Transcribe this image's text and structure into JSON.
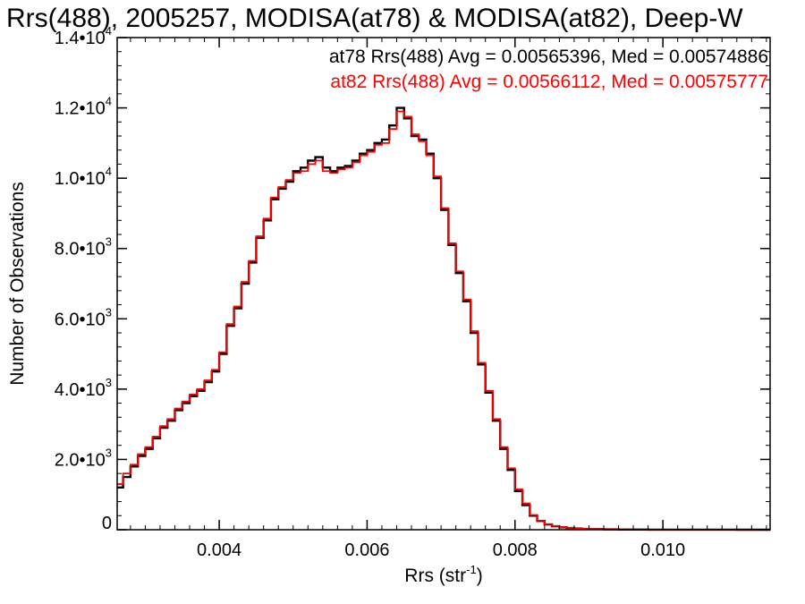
{
  "chart_data": {
    "type": "line",
    "title": "Rrs(488), 2005257, MODISA(at78) & MODISA(at82), Deep-W",
    "xlabel": "Rrs (str",
    "xlabel_sup": "-1",
    "xlabel_close": ")",
    "ylabel": "Number of Observations",
    "xlim": [
      0.00262,
      0.01145
    ],
    "ylim": [
      0,
      14000
    ],
    "x_ticks": [
      {
        "value": 0.004,
        "label": "0.004"
      },
      {
        "value": 0.006,
        "label": "0.006"
      },
      {
        "value": 0.008,
        "label": "0.008"
      },
      {
        "value": 0.01,
        "label": "0.010"
      }
    ],
    "x_minor_step": 0.0002,
    "y_ticks": [
      {
        "value": 0,
        "mant": "0",
        "exp": ""
      },
      {
        "value": 2000,
        "mant": "2.0•10",
        "exp": "3"
      },
      {
        "value": 4000,
        "mant": "4.0•10",
        "exp": "3"
      },
      {
        "value": 6000,
        "mant": "6.0•10",
        "exp": "3"
      },
      {
        "value": 8000,
        "mant": "8.0•10",
        "exp": "3"
      },
      {
        "value": 10000,
        "mant": "1.0•10",
        "exp": "4"
      },
      {
        "value": 12000,
        "mant": "1.2•10",
        "exp": "4"
      },
      {
        "value": 14000,
        "mant": "1.4•10",
        "exp": "4"
      }
    ],
    "y_minor_step": 400,
    "legend_placement": "top-right",
    "series": [
      {
        "name": "at78",
        "color": "#000000",
        "stats_text": "at78 Rrs(488) Avg = 0.00565396, Med = 0.00574886",
        "x": [
          0.00262,
          0.0027,
          0.0028,
          0.0029,
          0.003,
          0.0031,
          0.0032,
          0.0033,
          0.0034,
          0.0035,
          0.0036,
          0.0037,
          0.0038,
          0.0039,
          0.004,
          0.0041,
          0.0042,
          0.0043,
          0.0044,
          0.0045,
          0.0046,
          0.0047,
          0.0048,
          0.0049,
          0.005,
          0.0051,
          0.0052,
          0.0053,
          0.0054,
          0.0055,
          0.0056,
          0.0057,
          0.0058,
          0.0059,
          0.006,
          0.0061,
          0.0062,
          0.0063,
          0.0064,
          0.0065,
          0.0066,
          0.0067,
          0.0068,
          0.0069,
          0.007,
          0.0071,
          0.0072,
          0.0073,
          0.0074,
          0.0075,
          0.0076,
          0.0077,
          0.0078,
          0.0079,
          0.008,
          0.0081,
          0.0082,
          0.0083,
          0.0084,
          0.0085,
          0.0086,
          0.0087,
          0.0088,
          0.0089,
          0.009,
          0.0092,
          0.0094,
          0.0096,
          0.0098,
          0.01,
          0.0105,
          0.011,
          0.01145
        ],
        "y": [
          1200,
          1500,
          1800,
          2100,
          2300,
          2600,
          2900,
          3100,
          3400,
          3600,
          3800,
          3950,
          4200,
          4500,
          5000,
          5800,
          6300,
          7000,
          7600,
          8300,
          8800,
          9400,
          9700,
          9900,
          10200,
          10300,
          10500,
          10600,
          10300,
          10200,
          10300,
          10350,
          10500,
          10700,
          10800,
          11000,
          11100,
          11500,
          12000,
          11700,
          11200,
          11100,
          10700,
          10000,
          9100,
          8100,
          7300,
          6500,
          5600,
          4700,
          3900,
          3100,
          2300,
          1700,
          1100,
          700,
          400,
          250,
          150,
          100,
          70,
          50,
          35,
          25,
          18,
          10,
          6,
          4,
          2,
          1,
          1,
          0,
          0
        ]
      },
      {
        "name": "at82",
        "color": "#ff0000",
        "stats_text": "at82 Rrs(488) Avg = 0.00566112, Med = 0.00575777",
        "x": [
          0.00262,
          0.0027,
          0.0028,
          0.0029,
          0.003,
          0.0031,
          0.0032,
          0.0033,
          0.0034,
          0.0035,
          0.0036,
          0.0037,
          0.0038,
          0.0039,
          0.004,
          0.0041,
          0.0042,
          0.0043,
          0.0044,
          0.0045,
          0.0046,
          0.0047,
          0.0048,
          0.0049,
          0.005,
          0.0051,
          0.0052,
          0.0053,
          0.0054,
          0.0055,
          0.0056,
          0.0057,
          0.0058,
          0.0059,
          0.006,
          0.0061,
          0.0062,
          0.0063,
          0.0064,
          0.0065,
          0.0066,
          0.0067,
          0.0068,
          0.0069,
          0.007,
          0.0071,
          0.0072,
          0.0073,
          0.0074,
          0.0075,
          0.0076,
          0.0077,
          0.0078,
          0.0079,
          0.008,
          0.0081,
          0.0082,
          0.0083,
          0.0084,
          0.0085,
          0.0086,
          0.0087,
          0.0088,
          0.0089,
          0.009,
          0.0092,
          0.0094,
          0.0096,
          0.0098,
          0.01,
          0.0105,
          0.011,
          0.01145
        ],
        "y": [
          1300,
          1600,
          1850,
          2150,
          2350,
          2650,
          2950,
          3150,
          3450,
          3650,
          3850,
          4000,
          4250,
          4550,
          5050,
          5850,
          6350,
          7050,
          7650,
          8350,
          8850,
          9450,
          9750,
          9950,
          10150,
          10200,
          10400,
          10500,
          10200,
          10150,
          10250,
          10300,
          10450,
          10650,
          10750,
          10950,
          11000,
          11400,
          11900,
          11750,
          11250,
          11050,
          10650,
          10050,
          9150,
          8150,
          7350,
          6550,
          5650,
          4750,
          3950,
          3150,
          2350,
          1750,
          1150,
          750,
          420,
          260,
          160,
          105,
          75,
          55,
          38,
          27,
          20,
          12,
          7,
          4,
          2,
          1,
          1,
          0,
          0
        ]
      }
    ]
  }
}
